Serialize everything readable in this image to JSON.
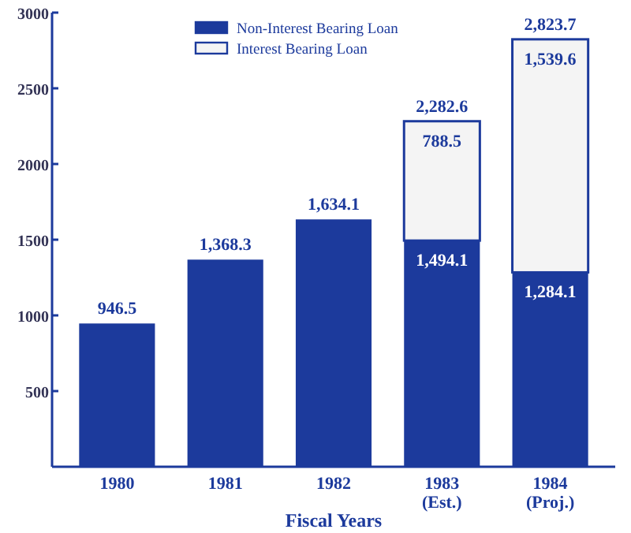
{
  "chart_data": {
    "type": "bar",
    "stacked": true,
    "xlabel": "Fiscal Years",
    "categories": [
      "1980",
      "1981",
      "1982",
      "1983\n(Est.)",
      "1984\n(Proj.)"
    ],
    "series": [
      {
        "name": "Non-Interest Bearing Loan",
        "color": "#1c3a9c",
        "values": [
          946.5,
          1368.3,
          1634.1,
          1494.1,
          1284.1
        ],
        "value_labels": [
          null,
          null,
          null,
          "1,494.1",
          "1,284.1"
        ]
      },
      {
        "name": "Interest Bearing Loan",
        "color": "#f4f4f4",
        "values": [
          null,
          null,
          null,
          788.5,
          1539.6
        ],
        "value_labels": [
          null,
          null,
          null,
          "788.5",
          "1,539.6"
        ]
      }
    ],
    "totals": [
      "946.5",
      "1,368.3",
      "1,634.1",
      "2,282.6",
      "2,823.7"
    ],
    "ylim": [
      0,
      3000
    ],
    "yticks": [
      500,
      1000,
      1500,
      2000,
      2500,
      3000
    ],
    "grid": false,
    "legend": "top"
  }
}
